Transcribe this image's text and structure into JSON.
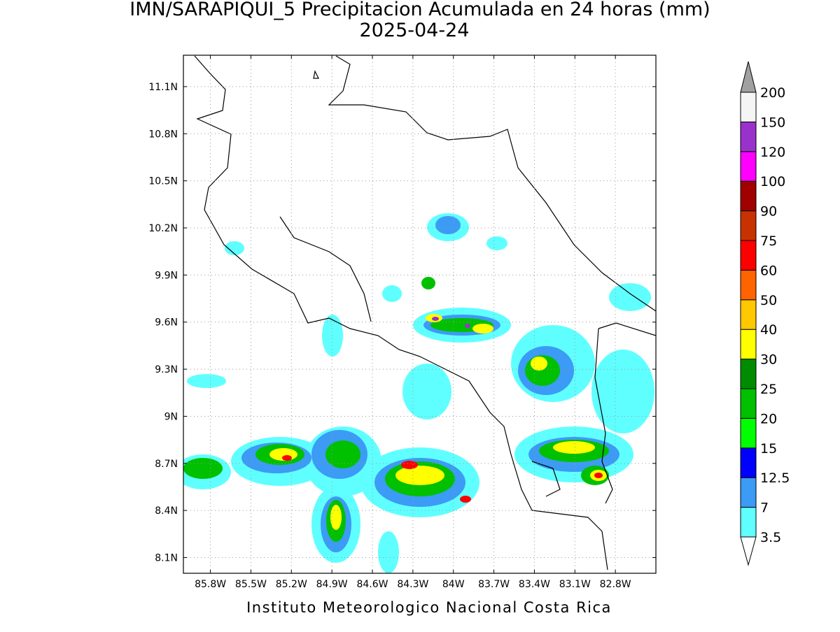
{
  "title": "IMN/SARAPIQUI_5 Precipitacion Acumulada en 24 horas (mm)",
  "subtitle": "2025-04-24",
  "footer": "Instituto Meteorologico Nacional Costa Rica",
  "map": {
    "latlim": [
      8.0,
      11.3
    ],
    "lonlim": [
      -86.0,
      -82.5
    ],
    "lat_ticks": [
      {
        "value": 11.1,
        "label": "11.1N"
      },
      {
        "value": 10.8,
        "label": "10.8N"
      },
      {
        "value": 10.5,
        "label": "10.5N"
      },
      {
        "value": 10.2,
        "label": "10.2N"
      },
      {
        "value": 9.9,
        "label": "9.9N"
      },
      {
        "value": 9.6,
        "label": "9.6N"
      },
      {
        "value": 9.3,
        "label": "9.3N"
      },
      {
        "value": 9.0,
        "label": "9N"
      },
      {
        "value": 8.7,
        "label": "8.7N"
      },
      {
        "value": 8.4,
        "label": "8.4N"
      },
      {
        "value": 8.1,
        "label": "8.1N"
      }
    ],
    "lon_ticks": [
      {
        "value": -85.8,
        "label": "85.8W"
      },
      {
        "value": -85.5,
        "label": "85.5W"
      },
      {
        "value": -85.2,
        "label": "85.2W"
      },
      {
        "value": -84.9,
        "label": "84.9W"
      },
      {
        "value": -84.6,
        "label": "84.6W"
      },
      {
        "value": -84.3,
        "label": "84.3W"
      },
      {
        "value": -84.0,
        "label": "84W"
      },
      {
        "value": -83.7,
        "label": "83.7W"
      },
      {
        "value": -83.4,
        "label": "83.4W"
      },
      {
        "value": -83.1,
        "label": "83.1W"
      },
      {
        "value": -82.8,
        "label": "82.8W"
      }
    ],
    "grid": true
  },
  "colorbar": {
    "labels": [
      3.5,
      7,
      12.5,
      15,
      20,
      25,
      30,
      40,
      50,
      60,
      75,
      90,
      100,
      120,
      150,
      200
    ],
    "colors": [
      "#60ffff",
      "#3c9bf5",
      "#0000ff",
      "#00ff00",
      "#00c000",
      "#008c00",
      "#ffff00",
      "#ffc800",
      "#ff6400",
      "#ff0000",
      "#c83200",
      "#a00000",
      "#ff00ff",
      "#9932cc",
      "#f5f5f5"
    ],
    "over_color": "#a0a0a0",
    "under_color": "#ffffff"
  }
}
